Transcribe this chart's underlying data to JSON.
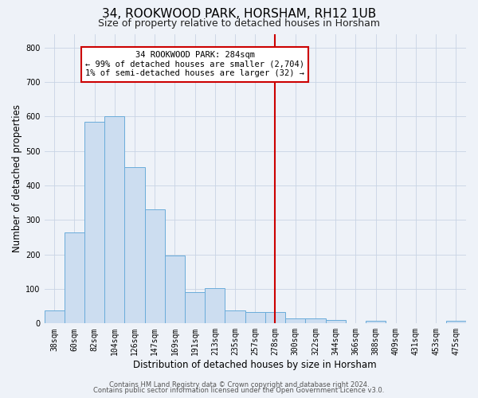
{
  "title": "34, ROOKWOOD PARK, HORSHAM, RH12 1UB",
  "subtitle": "Size of property relative to detached houses in Horsham",
  "xlabel": "Distribution of detached houses by size in Horsham",
  "ylabel": "Number of detached properties",
  "bar_labels": [
    "38sqm",
    "60sqm",
    "82sqm",
    "104sqm",
    "126sqm",
    "147sqm",
    "169sqm",
    "191sqm",
    "213sqm",
    "235sqm",
    "257sqm",
    "278sqm",
    "300sqm",
    "322sqm",
    "344sqm",
    "366sqm",
    "388sqm",
    "409sqm",
    "431sqm",
    "453sqm",
    "475sqm"
  ],
  "bar_values": [
    38,
    265,
    585,
    602,
    453,
    330,
    197,
    90,
    102,
    37,
    32,
    32,
    15,
    14,
    10,
    0,
    7,
    0,
    0,
    0,
    7
  ],
  "bar_color": "#ccddf0",
  "bar_edge_color": "#6aacda",
  "vline_index": 11,
  "vline_color": "#cc0000",
  "annotation_title": "34 ROOKWOOD PARK: 284sqm",
  "annotation_line1": "← 99% of detached houses are smaller (2,704)",
  "annotation_line2": "1% of semi-detached houses are larger (32) →",
  "annotation_box_color": "white",
  "annotation_box_edge_color": "#cc0000",
  "ylim": [
    0,
    840
  ],
  "yticks": [
    0,
    100,
    200,
    300,
    400,
    500,
    600,
    700,
    800
  ],
  "footer1": "Contains HM Land Registry data © Crown copyright and database right 2024.",
  "footer2": "Contains public sector information licensed under the Open Government Licence v3.0.",
  "bg_color": "#eef2f8",
  "grid_color": "#c8d4e4",
  "title_fontsize": 11,
  "subtitle_fontsize": 9,
  "axis_label_fontsize": 8.5,
  "tick_fontsize": 7,
  "annotation_fontsize": 7.5,
  "footer_fontsize": 6
}
